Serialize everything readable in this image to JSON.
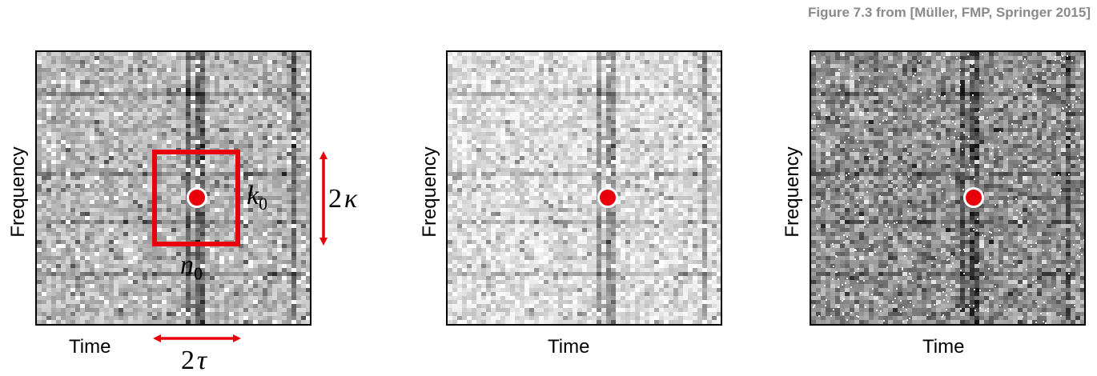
{
  "caption": "Figure 7.3 from [Müller, FMP, Springer 2015]",
  "panels": [
    {
      "ylabel": "Frequency",
      "xlabel": "Time",
      "style": "original"
    },
    {
      "ylabel": "Frequency",
      "xlabel": "Time",
      "style": "light"
    },
    {
      "ylabel": "Frequency",
      "xlabel": "Time",
      "style": "noisy"
    }
  ],
  "annotations": {
    "k_symbol": "k",
    "k_sub": "0",
    "n_symbol": "n",
    "n_sub": "0",
    "kappa_factor": "2",
    "kappa_symbol": "κ",
    "tau_factor": "2",
    "tau_symbol": "τ"
  },
  "colors": {
    "marker": "#e8000b",
    "caption": "#8a8a8a",
    "arrow": "#e8000b"
  }
}
